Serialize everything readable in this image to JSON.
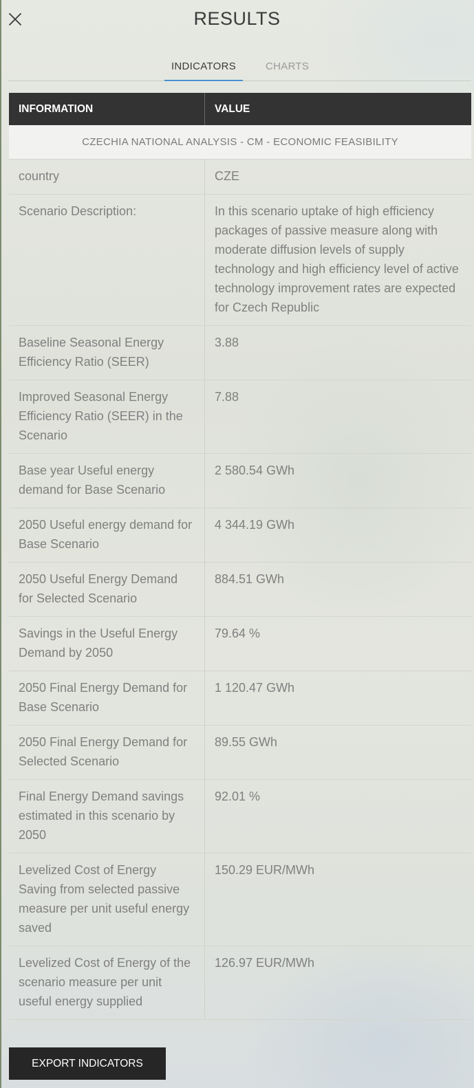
{
  "header": {
    "title": "RESULTS"
  },
  "tabs": [
    {
      "label": "INDICATORS",
      "active": true
    },
    {
      "label": "CHARTS",
      "active": false
    }
  ],
  "table": {
    "columns": [
      "INFORMATION",
      "VALUE"
    ],
    "section_title": "CZECHIA NATIONAL ANALYSIS - CM - ECONOMIC FEASIBILITY",
    "rows": [
      {
        "info": "country",
        "value": "CZE"
      },
      {
        "info": "Scenario Description:",
        "value": "In this scenario uptake of high efficiency packages of passive measure along with moderate diffusion levels of supply technology and high efficiency level of active technology improvement rates are expected for Czech Republic"
      },
      {
        "info": "Baseline Seasonal Energy Efficiency Ratio (SEER)",
        "value": "3.88"
      },
      {
        "info": "Improved Seasonal Energy Efficiency Ratio (SEER) in the Scenario",
        "value": "7.88"
      },
      {
        "info": "Base year Useful energy demand for Base Scenario",
        "value": "2 580.54 GWh"
      },
      {
        "info": "2050 Useful energy demand for Base Scenario",
        "value": "4 344.19 GWh"
      },
      {
        "info": "2050 Useful Energy Demand for Selected Scenario",
        "value": "884.51 GWh"
      },
      {
        "info": "Savings in the Useful Energy Demand by 2050",
        "value": "79.64 %"
      },
      {
        "info": "2050 Final Energy Demand for Base Scenario",
        "value": "1 120.47 GWh"
      },
      {
        "info": "2050 Final Energy Demand for Selected Scenario",
        "value": "89.55 GWh"
      },
      {
        "info": "Final Energy Demand savings estimated in this scenario by 2050",
        "value": "92.01 %"
      },
      {
        "info": "Levelized Cost of Energy Saving from selected passive measure per unit useful energy saved",
        "value": "150.29 EUR/MWh"
      },
      {
        "info": "Levelized Cost of Energy of the scenario measure per unit useful energy supplied",
        "value": "126.97 EUR/MWh"
      }
    ]
  },
  "footer": {
    "export_label": "EXPORT INDICATORS"
  },
  "icons": {
    "close": "close-icon"
  },
  "colors": {
    "header_bg": "#333333",
    "accent": "#4a8fd0",
    "button_bg": "#262626"
  }
}
